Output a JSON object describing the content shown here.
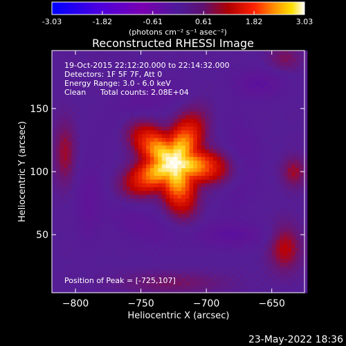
{
  "chart_data": {
    "type": "heatmap",
    "title": "Reconstructed RHESSI Image",
    "xlabel": "Heliocentric X (arcsec)",
    "ylabel": "Heliocentric Y (arcsec)",
    "xlim": [
      -818,
      -625
    ],
    "ylim": [
      4,
      196
    ],
    "x_ticks": [
      -800,
      -750,
      -700,
      -650
    ],
    "y_ticks": [
      50,
      100,
      150
    ],
    "colorbar": {
      "label": "(photons cm⁻² s⁻¹ asec⁻²)",
      "range": [
        -3.03,
        3.03
      ],
      "ticks": [
        "-3.03",
        "-1.82",
        "-0.61",
        "0.61",
        "1.82",
        "3.03"
      ],
      "colormap": [
        "#0000ff",
        "#4a00e0",
        "#7a00b0",
        "#4d1a99",
        "#601070",
        "#b00000",
        "#ff2000",
        "#ff9000",
        "#ffe000",
        "#ffffff"
      ]
    },
    "annotations": {
      "time": "19-Oct-2015 22:12:20.000 to 22:14:32.000",
      "detectors": "Detectors: 1F 5F 7F, Att 0",
      "energy": "Energy Range: 3.0 - 6.0 keV",
      "algorithm": "Clean",
      "counts": "Total counts: 2.08E+04",
      "peak": "Position of Peak = [-725,107]"
    },
    "peak": {
      "x": -725,
      "y": 107,
      "value": 3.03
    },
    "background_level": -0.4
  },
  "footer_date": "23-May-2022 18:36"
}
